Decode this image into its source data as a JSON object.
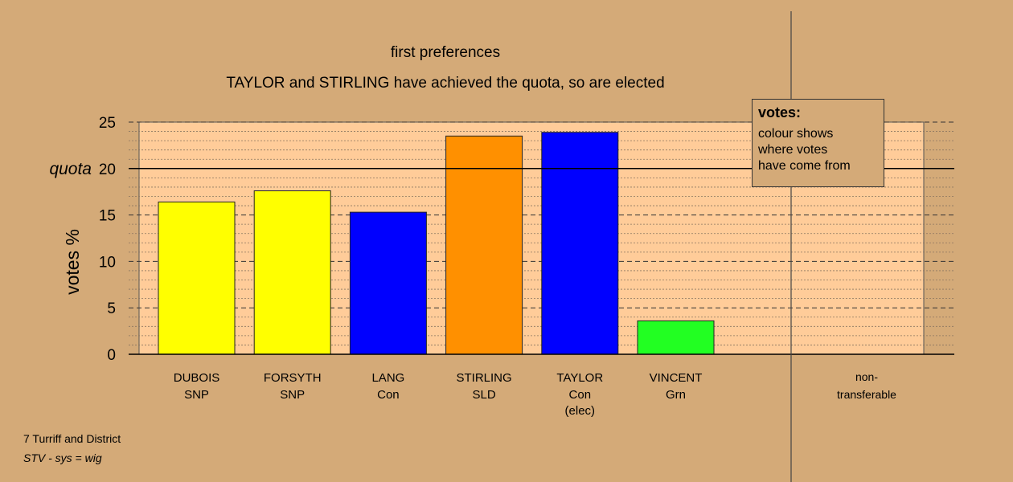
{
  "chart_data": {
    "type": "bar",
    "title": "first preferences",
    "subtitle": "TAYLOR and STIRLING have achieved the quota, so are elected",
    "ylabel": "votes %",
    "ylim": [
      0,
      25
    ],
    "yticks": [
      0,
      5,
      10,
      15,
      20,
      25
    ],
    "quota": 20,
    "quota_label": "quota",
    "grid": true,
    "categories": [
      {
        "name": "DUBOIS",
        "party": "SNP",
        "note": "",
        "value": 16.4,
        "color": "#ffff00"
      },
      {
        "name": "FORSYTH",
        "party": "SNP",
        "note": "",
        "value": 17.6,
        "color": "#ffff00"
      },
      {
        "name": "LANG",
        "party": "Con",
        "note": "",
        "value": 15.3,
        "color": "#0000ff"
      },
      {
        "name": "STIRLING",
        "party": "SLD",
        "note": "",
        "value": 23.5,
        "color": "#ff9000"
      },
      {
        "name": "TAYLOR",
        "party": "Con",
        "note": "(elec)",
        "value": 23.9,
        "color": "#0000ff"
      },
      {
        "name": "VINCENT",
        "party": "Grn",
        "note": "",
        "value": 3.6,
        "color": "#22ff22"
      }
    ],
    "nontransferable": {
      "line1": "non-",
      "line2": "transferable",
      "value": 0
    }
  },
  "legend": {
    "title": "votes:",
    "lines": [
      "colour shows",
      "where votes",
      "have come from"
    ]
  },
  "footer": {
    "line1": "7 Turriff and District",
    "line2": "STV - sys = wig"
  },
  "colors": {
    "background": "#d4aa78",
    "plot_area": "#ffcc99"
  }
}
